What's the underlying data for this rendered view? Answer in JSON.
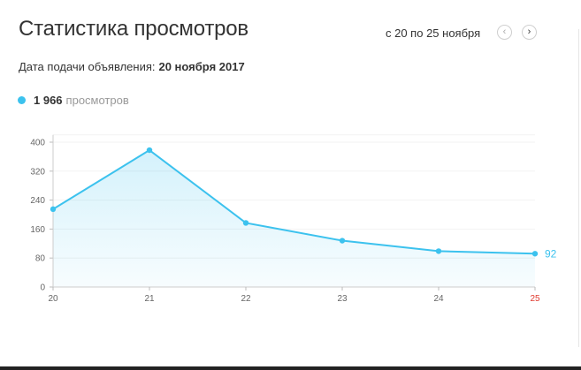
{
  "header": {
    "title": "Статистика просмотров",
    "range_label": "с 20 по 25 ноября",
    "prev_icon": "‹",
    "next_icon": "›"
  },
  "meta": {
    "label": "Дата подачи объявления:",
    "value": "20 ноября 2017"
  },
  "legend": {
    "count": "1 966",
    "unit": "просмотров",
    "color": "#3cc2ee"
  },
  "chart_data": {
    "type": "area",
    "x": [
      "20",
      "21",
      "22",
      "23",
      "24",
      "25"
    ],
    "series": [
      {
        "values": [
          215,
          378,
          177,
          128,
          99,
          92
        ]
      }
    ],
    "highlighted_x": "25",
    "end_value_label": "92",
    "yticks": [
      "0",
      "80",
      "160",
      "240",
      "320",
      "400"
    ],
    "ylim": [
      0,
      420
    ],
    "grid": true,
    "line_color": "#3cc2ee",
    "highlight_color": "#e03a2f"
  }
}
